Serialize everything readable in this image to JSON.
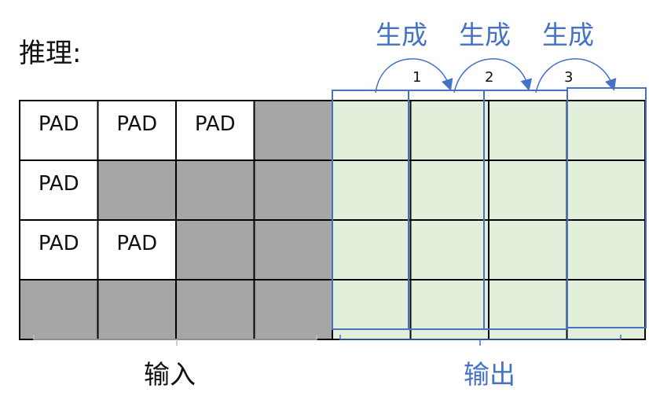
{
  "title": "推理:",
  "generate_labels": [
    "生成",
    "生成",
    "生成"
  ],
  "step_numbers": [
    "1",
    "2",
    "3"
  ],
  "input_label": "输入",
  "output_label": "输出",
  "pad_text": "PAD",
  "grid": {
    "rows": 4,
    "input_cols": 4,
    "output_cols": 4,
    "input_cells": [
      [
        "pad",
        "pad",
        "pad",
        "mask"
      ],
      [
        "pad",
        "mask",
        "mask",
        "mask"
      ],
      [
        "pad",
        "pad",
        "mask",
        "mask"
      ],
      [
        "mask",
        "mask",
        "mask",
        "mask"
      ]
    ]
  },
  "colors": {
    "mask": "#A6A6A6",
    "pad": "#FFFFFF",
    "output": "#E2EFDA",
    "accent": "#4472C4",
    "line": "#000000",
    "brace": "#BFBFBF"
  }
}
